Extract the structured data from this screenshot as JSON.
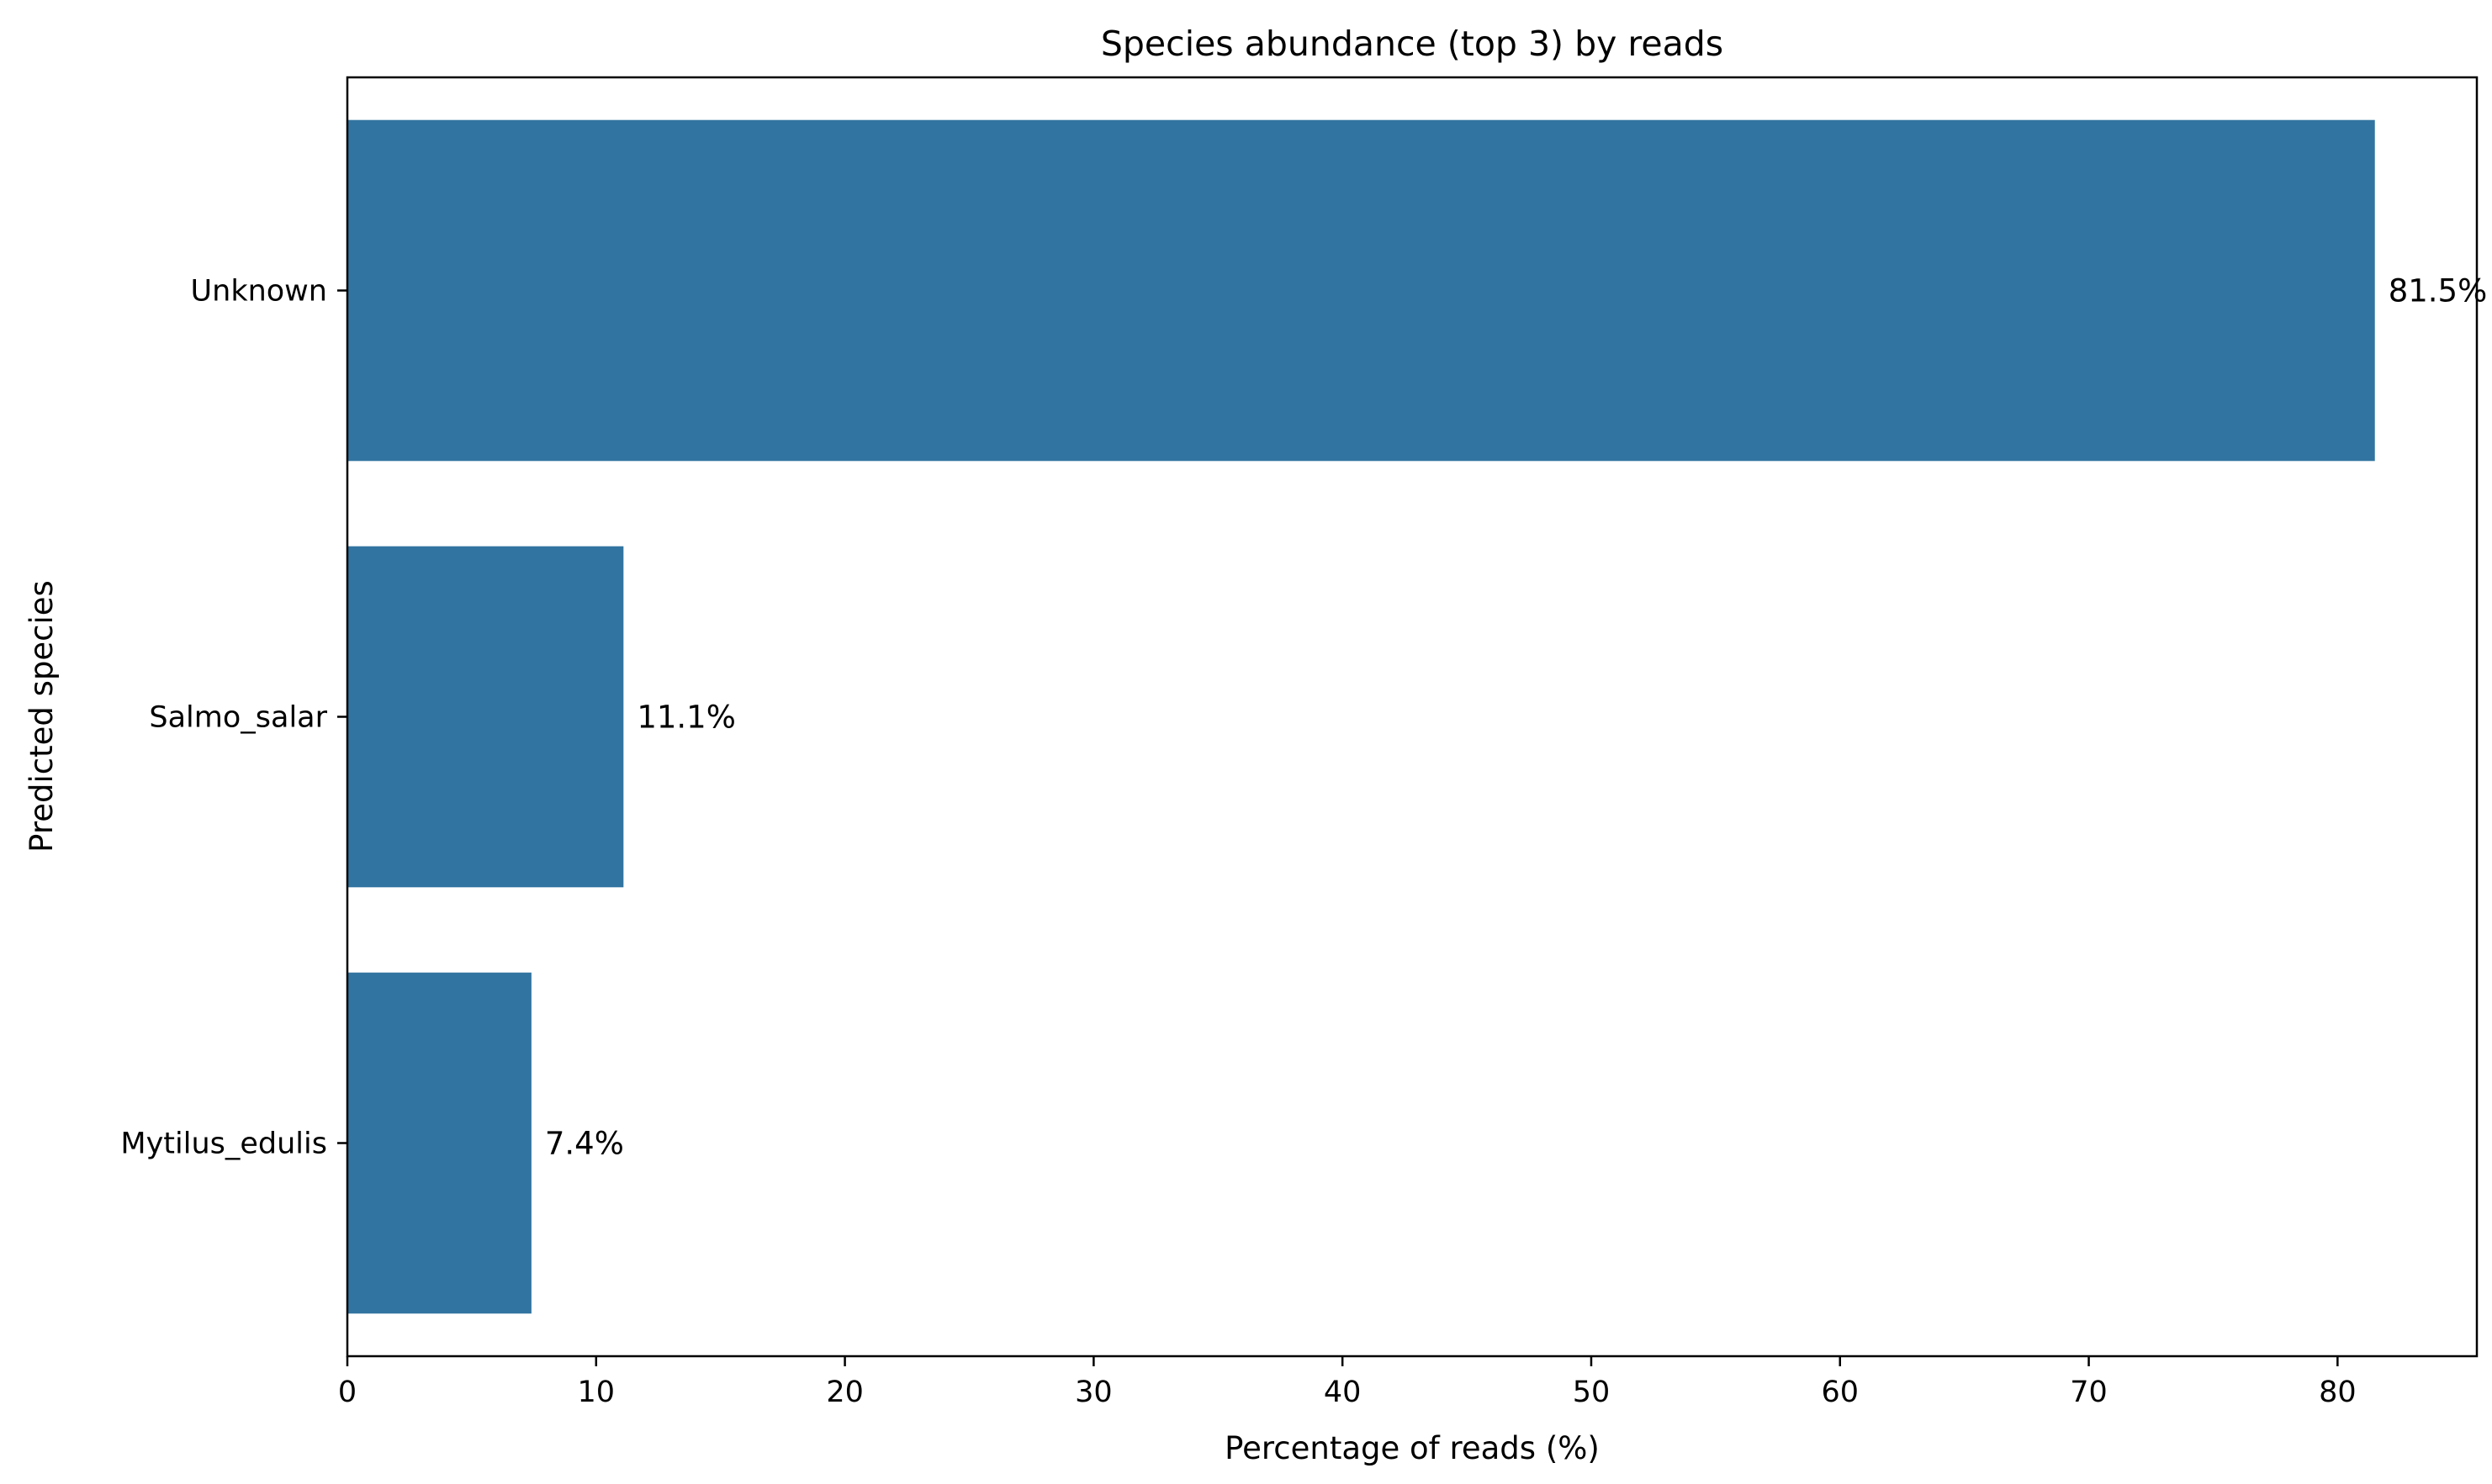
{
  "chart_data": {
    "type": "bar",
    "orientation": "horizontal",
    "title": "Species abundance (top 3) by reads",
    "xlabel": "Percentage of reads (%)",
    "ylabel": "Predicted species",
    "categories": [
      "Unknown",
      "Salmo_salar",
      "Mytilus_edulis"
    ],
    "values": [
      81.5,
      11.1,
      7.4
    ],
    "value_labels": [
      "81.5%",
      "11.1%",
      "7.4%"
    ],
    "xlim": [
      0,
      85.6
    ],
    "xticks": [
      0,
      10,
      20,
      30,
      40,
      50,
      60,
      70,
      80
    ],
    "grid": false,
    "bar_color": "#3274a1"
  }
}
